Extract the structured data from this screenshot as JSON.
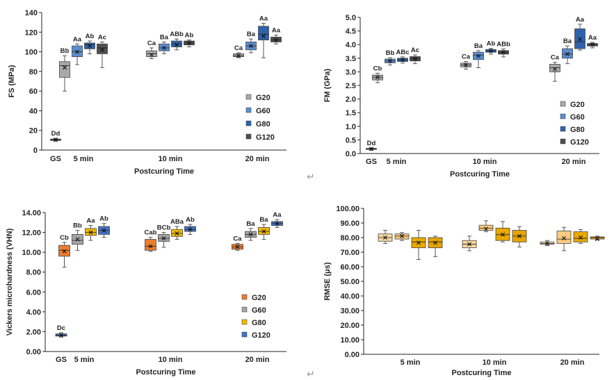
{
  "paragraph_mark": "↵",
  "chart_data": [
    {
      "type": "boxplot",
      "panel": "top-left",
      "ylabel": "FS (MPa)",
      "xlabel": "Postcuring Time",
      "ylim": [
        0,
        140
      ],
      "yticks": [
        0,
        20,
        40,
        60,
        80,
        100,
        120,
        140
      ],
      "ytick_labels": [
        "0",
        "20",
        "40",
        "60",
        "80",
        "100",
        "120",
        "140"
      ],
      "categories": [
        "GS",
        "5 min",
        "10 min",
        "20 min"
      ],
      "legend": {
        "placement": "right",
        "items": [
          {
            "name": "G20",
            "color": "#a9a9a9"
          },
          {
            "name": "G60",
            "color": "#5b8fd1"
          },
          {
            "name": "G80",
            "color": "#2f64ad"
          },
          {
            "name": "G120",
            "color": "#4f4f4f"
          }
        ]
      },
      "boxes": [
        {
          "category": "GS",
          "series": "GS",
          "color": "#3a3a3a",
          "min": 9,
          "q1": 9.8,
          "median": 10.3,
          "q3": 11.2,
          "max": 12,
          "mean": 10.5,
          "label": "Dd"
        },
        {
          "category": "5 min",
          "series": "G20",
          "color": "#a9a9a9",
          "min": 60,
          "q1": 74,
          "median": 86,
          "q3": 90,
          "max": 96,
          "mean": 84,
          "label": "Bb"
        },
        {
          "category": "5 min",
          "series": "G60",
          "color": "#5b8fd1",
          "min": 87,
          "q1": 95,
          "median": 100,
          "q3": 106,
          "max": 108,
          "mean": 100,
          "label": "Aa"
        },
        {
          "category": "5 min",
          "series": "G80",
          "color": "#2f64ad",
          "min": 98,
          "q1": 103,
          "median": 107,
          "q3": 109,
          "max": 111,
          "mean": 106,
          "label": "Ab"
        },
        {
          "category": "5 min",
          "series": "G120",
          "color": "#4f4f4f",
          "min": 84,
          "q1": 98,
          "median": 104,
          "q3": 108,
          "max": 110,
          "mean": 102,
          "label": "Ac"
        },
        {
          "category": "10 min",
          "series": "G20",
          "color": "#a9a9a9",
          "min": 93,
          "q1": 95,
          "median": 98,
          "q3": 101,
          "max": 104,
          "mean": 97,
          "label": "Ca"
        },
        {
          "category": "10 min",
          "series": "G60",
          "color": "#5b8fd1",
          "min": 98,
          "q1": 101,
          "median": 104,
          "q3": 108,
          "max": 110,
          "mean": 104,
          "label": "Ba"
        },
        {
          "category": "10 min",
          "series": "G80",
          "color": "#2f64ad",
          "min": 102,
          "q1": 105,
          "median": 108,
          "q3": 111,
          "max": 113,
          "mean": 107,
          "label": "ABb"
        },
        {
          "category": "10 min",
          "series": "G120",
          "color": "#4f4f4f",
          "min": 105,
          "q1": 107,
          "median": 109,
          "q3": 111,
          "max": 112,
          "mean": 109,
          "label": "Ab"
        },
        {
          "category": "20 min",
          "series": "G20",
          "color": "#a9a9a9",
          "min": 94,
          "q1": 95,
          "median": 96,
          "q3": 98,
          "max": 99,
          "mean": 96,
          "label": "Ca"
        },
        {
          "category": "20 min",
          "series": "G60",
          "color": "#5b8fd1",
          "min": 99,
          "q1": 102,
          "median": 106,
          "q3": 110,
          "max": 113,
          "mean": 106,
          "label": "Ba"
        },
        {
          "category": "20 min",
          "series": "G80",
          "color": "#2f64ad",
          "min": 94,
          "q1": 112,
          "median": 118,
          "q3": 126,
          "max": 129,
          "mean": 116,
          "label": "Aa"
        },
        {
          "category": "20 min",
          "series": "G120",
          "color": "#4f4f4f",
          "min": 108,
          "q1": 110,
          "median": 112,
          "q3": 115,
          "max": 117,
          "mean": 112,
          "label": "Aa"
        }
      ]
    },
    {
      "type": "boxplot",
      "panel": "top-right",
      "ylabel": "FM  (GPa)",
      "xlabel": "Postcuring Time",
      "ylim": [
        0,
        5
      ],
      "yticks": [
        0,
        0.5,
        1,
        1.5,
        2,
        2.5,
        3,
        3.5,
        4,
        4.5,
        5
      ],
      "ytick_labels": [
        "0.0",
        "0.5",
        "1.0",
        "1.5",
        "2.0",
        "2.5",
        "3.0",
        "3.5",
        "4.0",
        "4.5",
        "5.0"
      ],
      "categories": [
        "GS",
        "5 min",
        "10 min",
        "20 min"
      ],
      "legend": {
        "placement": "right",
        "items": [
          {
            "name": "G20",
            "color": "#a9a9a9"
          },
          {
            "name": "G60",
            "color": "#5b8fd1"
          },
          {
            "name": "G80",
            "color": "#2f64ad"
          },
          {
            "name": "G120",
            "color": "#4f4f4f"
          }
        ]
      },
      "boxes": [
        {
          "category": "GS",
          "series": "GS",
          "color": "#3a3a3a",
          "min": 0.12,
          "q1": 0.15,
          "median": 0.17,
          "q3": 0.19,
          "max": 0.21,
          "mean": 0.17,
          "label": "Dd"
        },
        {
          "category": "5 min",
          "series": "G20",
          "color": "#a9a9a9",
          "min": 2.6,
          "q1": 2.7,
          "median": 2.8,
          "q3": 2.88,
          "max": 2.95,
          "mean": 2.8,
          "label": "Cb"
        },
        {
          "category": "5 min",
          "series": "G60",
          "color": "#5b8fd1",
          "min": 3.25,
          "q1": 3.33,
          "median": 3.4,
          "q3": 3.47,
          "max": 3.52,
          "mean": 3.4,
          "label": "Bb"
        },
        {
          "category": "5 min",
          "series": "G80",
          "color": "#2f64ad",
          "min": 3.32,
          "q1": 3.38,
          "median": 3.44,
          "q3": 3.5,
          "max": 3.55,
          "mean": 3.44,
          "label": "ABc"
        },
        {
          "category": "5 min",
          "series": "G120",
          "color": "#4f4f4f",
          "min": 3.3,
          "q1": 3.4,
          "median": 3.48,
          "q3": 3.56,
          "max": 3.62,
          "mean": 3.48,
          "label": "Ac"
        },
        {
          "category": "10 min",
          "series": "G20",
          "color": "#a9a9a9",
          "min": 3.1,
          "q1": 3.18,
          "median": 3.25,
          "q3": 3.32,
          "max": 3.38,
          "mean": 3.25,
          "label": "Ca"
        },
        {
          "category": "10 min",
          "series": "G60",
          "color": "#5b8fd1",
          "min": 3.15,
          "q1": 3.45,
          "median": 3.6,
          "q3": 3.72,
          "max": 3.78,
          "mean": 3.58,
          "label": "Ba"
        },
        {
          "category": "10 min",
          "series": "G80",
          "color": "#2f64ad",
          "min": 3.65,
          "q1": 3.72,
          "median": 3.77,
          "q3": 3.82,
          "max": 3.86,
          "mean": 3.77,
          "label": "Ab"
        },
        {
          "category": "10 min",
          "series": "G120",
          "color": "#4f4f4f",
          "min": 3.55,
          "q1": 3.65,
          "median": 3.72,
          "q3": 3.78,
          "max": 3.84,
          "mean": 3.72,
          "label": "ABb"
        },
        {
          "category": "20 min",
          "series": "G20",
          "color": "#a9a9a9",
          "min": 2.65,
          "q1": 3.0,
          "median": 3.15,
          "q3": 3.28,
          "max": 3.35,
          "mean": 3.1,
          "label": "Ca"
        },
        {
          "category": "20 min",
          "series": "G60",
          "color": "#5b8fd1",
          "min": 3.3,
          "q1": 3.5,
          "median": 3.65,
          "q3": 3.85,
          "max": 3.95,
          "mean": 3.65,
          "label": "Ba"
        },
        {
          "category": "20 min",
          "series": "G80",
          "color": "#2f64ad",
          "min": 3.8,
          "q1": 3.85,
          "median": 4.1,
          "q3": 4.58,
          "max": 4.75,
          "mean": 4.2,
          "label": "Aa"
        },
        {
          "category": "20 min",
          "series": "G120",
          "color": "#4f4f4f",
          "min": 3.88,
          "q1": 3.95,
          "median": 4.0,
          "q3": 4.04,
          "max": 4.08,
          "mean": 4.0,
          "label": "Aa"
        }
      ]
    },
    {
      "type": "boxplot",
      "panel": "bottom-left",
      "ylabel": "Vickers microhardness (VHN)",
      "xlabel": "Postcuring Time",
      "ylim": [
        0,
        14
      ],
      "yticks": [
        0,
        2,
        4,
        6,
        8,
        10,
        12,
        14
      ],
      "ytick_labels": [
        "0.00",
        "2.00",
        "4.00",
        "6.00",
        "8.00",
        "10.00",
        "12.00",
        "14.00"
      ],
      "categories": [
        "GS",
        "5 min",
        "10 min",
        "20 min"
      ],
      "legend": {
        "placement": "right",
        "items": [
          {
            "name": "G20",
            "color": "#ed7d31"
          },
          {
            "name": "G60",
            "color": "#a5a5a5"
          },
          {
            "name": "G80",
            "color": "#f2b800"
          },
          {
            "name": "G120",
            "color": "#4472c4"
          }
        ]
      },
      "boxes": [
        {
          "category": "GS",
          "series": "GS",
          "color": "#4472c4",
          "min": 1.45,
          "q1": 1.55,
          "median": 1.65,
          "q3": 1.78,
          "max": 1.9,
          "mean": 1.65,
          "label": "Dc"
        },
        {
          "category": "5 min",
          "series": "G20",
          "color": "#ed7d31",
          "min": 8.5,
          "q1": 9.6,
          "median": 10.2,
          "q3": 10.7,
          "max": 11.0,
          "mean": 10.1,
          "label": "Cb"
        },
        {
          "category": "5 min",
          "series": "G60",
          "color": "#a5a5a5",
          "min": 10.2,
          "q1": 10.8,
          "median": 11.2,
          "q3": 11.8,
          "max": 12.2,
          "mean": 11.3,
          "label": "Bb"
        },
        {
          "category": "5 min",
          "series": "G80",
          "color": "#f2b800",
          "min": 11.2,
          "q1": 11.7,
          "median": 12.0,
          "q3": 12.4,
          "max": 12.7,
          "mean": 12.0,
          "label": "Aa"
        },
        {
          "category": "5 min",
          "series": "G120",
          "color": "#4472c4",
          "min": 11.5,
          "q1": 11.8,
          "median": 12.2,
          "q3": 12.6,
          "max": 12.9,
          "mean": 12.2,
          "label": "Ab"
        },
        {
          "category": "10 min",
          "series": "G20",
          "color": "#ed7d31",
          "min": 10.1,
          "q1": 10.2,
          "median": 10.6,
          "q3": 11.3,
          "max": 11.5,
          "mean": 10.6,
          "label": "Cab"
        },
        {
          "category": "10 min",
          "series": "G60",
          "color": "#a5a5a5",
          "min": 10.5,
          "q1": 11.1,
          "median": 11.4,
          "q3": 11.8,
          "max": 12.0,
          "mean": 11.4,
          "label": "BCb"
        },
        {
          "category": "10 min",
          "series": "G80",
          "color": "#f2b800",
          "min": 11.3,
          "q1": 11.6,
          "median": 11.9,
          "q3": 12.3,
          "max": 12.6,
          "mean": 11.9,
          "label": "ABa"
        },
        {
          "category": "10 min",
          "series": "G120",
          "color": "#4472c4",
          "min": 11.8,
          "q1": 12.1,
          "median": 12.3,
          "q3": 12.6,
          "max": 12.8,
          "mean": 12.3,
          "label": "Ab"
        },
        {
          "category": "20 min",
          "series": "G20",
          "color": "#ed7d31",
          "min": 10.2,
          "q1": 10.3,
          "median": 10.55,
          "q3": 10.8,
          "max": 10.9,
          "mean": 10.55,
          "label": "Ca"
        },
        {
          "category": "20 min",
          "series": "G60",
          "color": "#a5a5a5",
          "min": 11.2,
          "q1": 11.5,
          "median": 11.8,
          "q3": 12.1,
          "max": 12.4,
          "mean": 11.8,
          "label": "Ba"
        },
        {
          "category": "20 min",
          "series": "G80",
          "color": "#f2b800",
          "min": 11.3,
          "q1": 11.8,
          "median": 12.1,
          "q3": 12.5,
          "max": 12.8,
          "mean": 12.1,
          "label": "Ba"
        },
        {
          "category": "20 min",
          "series": "G120",
          "color": "#4472c4",
          "min": 12.5,
          "q1": 12.7,
          "median": 12.9,
          "q3": 13.1,
          "max": 13.3,
          "mean": 12.9,
          "label": "Aa"
        }
      ]
    },
    {
      "type": "boxplot",
      "panel": "bottom-right",
      "ylabel": "RMSE (μs)",
      "xlabel": "Postcuring Time",
      "ylim": [
        0,
        100
      ],
      "yticks": [
        0,
        10,
        20,
        30,
        40,
        50,
        60,
        70,
        80,
        90,
        100
      ],
      "ytick_labels": [
        "0.00",
        "10.00",
        "20.00",
        "30.00",
        "40.00",
        "50.00",
        "60.00",
        "70.00",
        "80.00",
        "90.00",
        "100.00"
      ],
      "categories": [
        "5 min",
        "10 min",
        "20 min"
      ],
      "boxes": [
        {
          "category": "5 min",
          "series": "G20",
          "color": "#f8d7a0",
          "min": 76,
          "q1": 77.5,
          "median": 80,
          "q3": 82.5,
          "max": 85,
          "mean": 80,
          "label": ""
        },
        {
          "category": "5 min",
          "series": "G60",
          "color": "#f9ca7f",
          "min": 78,
          "q1": 79,
          "median": 81,
          "q3": 82.5,
          "max": 83.5,
          "mean": 81,
          "label": ""
        },
        {
          "category": "5 min",
          "series": "G80",
          "color": "#e9a900",
          "min": 65,
          "q1": 73,
          "median": 77,
          "q3": 80,
          "max": 85,
          "mean": 76.5,
          "label": ""
        },
        {
          "category": "5 min",
          "series": "G120",
          "color": "#e7a300",
          "min": 67,
          "q1": 73,
          "median": 77,
          "q3": 80,
          "max": 81,
          "mean": 76.5,
          "label": ""
        },
        {
          "category": "10 min",
          "series": "G20",
          "color": "#f8d7a0",
          "min": 71,
          "q1": 73,
          "median": 75.5,
          "q3": 78,
          "max": 81,
          "mean": 75.5,
          "label": ""
        },
        {
          "category": "10 min",
          "series": "G60",
          "color": "#f9ca7f",
          "min": 84,
          "q1": 85,
          "median": 86.5,
          "q3": 88.5,
          "max": 91.5,
          "mean": 86,
          "label": ""
        },
        {
          "category": "10 min",
          "series": "G80",
          "color": "#e9a900",
          "min": 77,
          "q1": 78,
          "median": 82,
          "q3": 86.5,
          "max": 91,
          "mean": 82,
          "label": ""
        },
        {
          "category": "10 min",
          "series": "G120",
          "color": "#e7a300",
          "min": 73.5,
          "q1": 77,
          "median": 81,
          "q3": 85,
          "max": 87.5,
          "mean": 81,
          "label": ""
        },
        {
          "category": "20 min",
          "series": "G20",
          "color": "#f8d7a0",
          "min": 74.5,
          "q1": 75.5,
          "median": 76,
          "q3": 77,
          "max": 78,
          "mean": 76,
          "label": ""
        },
        {
          "category": "20 min",
          "series": "G60",
          "color": "#f9ca7f",
          "min": 71,
          "q1": 76,
          "median": 79,
          "q3": 84.5,
          "max": 87,
          "mean": 79.5,
          "label": ""
        },
        {
          "category": "20 min",
          "series": "G80",
          "color": "#e9a900",
          "min": 76,
          "q1": 77,
          "median": 79.5,
          "q3": 84,
          "max": 85.5,
          "mean": 80,
          "label": ""
        },
        {
          "category": "20 min",
          "series": "G120",
          "color": "#e7a300",
          "min": 78.5,
          "q1": 79,
          "median": 80,
          "q3": 80.5,
          "max": 81,
          "mean": 79,
          "label": ""
        }
      ]
    }
  ]
}
